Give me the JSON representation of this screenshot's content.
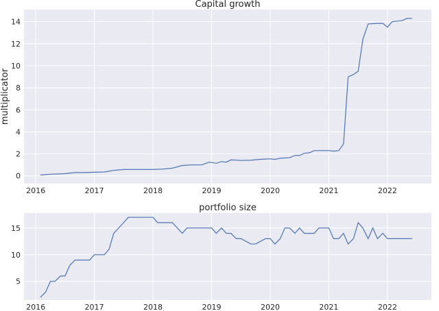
{
  "chart_data": [
    {
      "type": "line",
      "title": "Capital growth",
      "xlabel": "",
      "ylabel": "multiplicator",
      "xlim": [
        2015.8,
        2022.75
      ],
      "ylim": [
        -0.7,
        15.1
      ],
      "xticks": [
        2016,
        2017,
        2018,
        2019,
        2020,
        2021,
        2022
      ],
      "yticks": [
        0,
        2,
        4,
        6,
        8,
        10,
        12,
        14
      ],
      "grid": true,
      "series": [
        {
          "color": "#4c72b0",
          "x": [
            2016.08,
            2016.25,
            2016.5,
            2016.67,
            2016.83,
            2017.0,
            2017.17,
            2017.33,
            2017.5,
            2017.67,
            2017.83,
            2018.0,
            2018.17,
            2018.33,
            2018.5,
            2018.67,
            2018.83,
            2018.96,
            2019.08,
            2019.17,
            2019.25,
            2019.33,
            2019.5,
            2019.67,
            2019.83,
            2020.0,
            2020.08,
            2020.17,
            2020.33,
            2020.42,
            2020.5,
            2020.58,
            2020.67,
            2020.75,
            2020.83,
            2021.0,
            2021.08,
            2021.17,
            2021.25,
            2021.33,
            2021.42,
            2021.5,
            2021.58,
            2021.67,
            2021.83,
            2021.92,
            2022.0,
            2022.08,
            2022.25,
            2022.33,
            2022.42
          ],
          "y": [
            0.08,
            0.15,
            0.2,
            0.3,
            0.3,
            0.33,
            0.35,
            0.5,
            0.58,
            0.58,
            0.58,
            0.58,
            0.62,
            0.7,
            0.95,
            1.0,
            1.0,
            1.25,
            1.15,
            1.3,
            1.25,
            1.45,
            1.4,
            1.42,
            1.5,
            1.55,
            1.5,
            1.6,
            1.65,
            1.85,
            1.85,
            2.05,
            2.1,
            2.3,
            2.3,
            2.3,
            2.25,
            2.3,
            2.9,
            9.0,
            9.2,
            9.5,
            12.4,
            13.8,
            13.85,
            13.85,
            13.5,
            14.0,
            14.1,
            14.3,
            14.3
          ]
        }
      ]
    },
    {
      "type": "line",
      "title": "portfolio size",
      "xlabel": "",
      "ylabel": "",
      "xlim": [
        2015.8,
        2022.75
      ],
      "ylim": [
        1.5,
        17.8
      ],
      "xticks": [
        2016,
        2017,
        2018,
        2019,
        2020,
        2021,
        2022
      ],
      "yticks": [
        5,
        10,
        15
      ],
      "grid": true,
      "series": [
        {
          "color": "#4c72b0",
          "x": [
            2016.08,
            2016.17,
            2016.25,
            2016.33,
            2016.42,
            2016.5,
            2016.58,
            2016.67,
            2016.75,
            2016.92,
            2017.0,
            2017.17,
            2017.25,
            2017.33,
            2017.5,
            2017.58,
            2017.67,
            2017.83,
            2018.0,
            2018.08,
            2018.17,
            2018.33,
            2018.5,
            2018.58,
            2018.67,
            2018.83,
            2019.0,
            2019.08,
            2019.17,
            2019.25,
            2019.33,
            2019.42,
            2019.5,
            2019.67,
            2019.75,
            2019.92,
            2020.0,
            2020.08,
            2020.17,
            2020.25,
            2020.33,
            2020.42,
            2020.5,
            2020.58,
            2020.75,
            2020.83,
            2021.0,
            2021.08,
            2021.17,
            2021.25,
            2021.33,
            2021.42,
            2021.5,
            2021.58,
            2021.67,
            2021.75,
            2021.83,
            2021.92,
            2022.0,
            2022.08,
            2022.25,
            2022.42
          ],
          "y": [
            2,
            3,
            5,
            5,
            6,
            6,
            8,
            9,
            9,
            9,
            10,
            10,
            11,
            14,
            16,
            17,
            17,
            17,
            17,
            16,
            16,
            16,
            14,
            15,
            15,
            15,
            15,
            14,
            15,
            14,
            14,
            13,
            13,
            12,
            12,
            13,
            13,
            12,
            13,
            15,
            15,
            14,
            15,
            14,
            14,
            15,
            15,
            13,
            13,
            14,
            12,
            13,
            16,
            15,
            13,
            15,
            13,
            14,
            13,
            13,
            13,
            13
          ]
        }
      ]
    }
  ]
}
